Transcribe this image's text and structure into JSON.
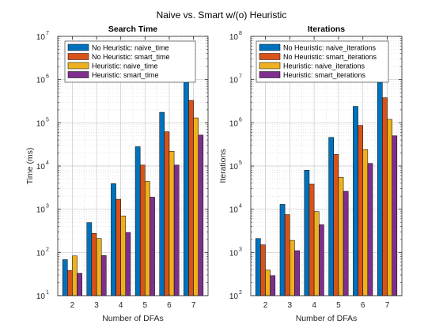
{
  "figure": {
    "title": "Naive vs. Smart w/(o) Heuristic"
  },
  "colors": {
    "no_heuristic_naive": "#0072BD",
    "no_heuristic_smart": "#D95319",
    "heuristic_naive": "#EDB120",
    "heuristic_smart": "#7E2F8E"
  },
  "chart_data": [
    {
      "type": "bar",
      "title": "Search Time",
      "xlabel": "Number of DFAs",
      "ylabel": "Time (ms)",
      "yscale": "log",
      "ylim": [
        10,
        10000000
      ],
      "categories": [
        "2",
        "3",
        "4",
        "5",
        "6",
        "7"
      ],
      "grid": true,
      "minor_grid": true,
      "legend_position": "top-left",
      "series": [
        {
          "name": "No Heuristic: naive_time",
          "color": "#0072BD",
          "values": [
            68,
            490,
            3900,
            28000,
            175000,
            1050000
          ]
        },
        {
          "name": "No Heuristic: smart_time",
          "color": "#D95319",
          "values": [
            38,
            275,
            1700,
            10500,
            62000,
            330000
          ]
        },
        {
          "name": "Heuristic: naive_time",
          "color": "#EDB120",
          "values": [
            83,
            210,
            700,
            4400,
            22000,
            130000
          ]
        },
        {
          "name": "Heuristic: smart_time",
          "color": "#7E2F8E",
          "values": [
            33,
            85,
            290,
            1900,
            10500,
            52000
          ]
        }
      ]
    },
    {
      "type": "bar",
      "title": "Iterations",
      "xlabel": "Number of DFAs",
      "ylabel": "Iterations",
      "yscale": "log",
      "ylim": [
        100,
        100000000
      ],
      "categories": [
        "2",
        "3",
        "4",
        "5",
        "6",
        "7"
      ],
      "grid": true,
      "minor_grid": true,
      "legend_position": "top-left",
      "series": [
        {
          "name": "No Heuristic: naive_iterations",
          "color": "#0072BD",
          "values": [
            2100,
            13000,
            80000,
            460000,
            2400000,
            11500000
          ]
        },
        {
          "name": "No Heuristic: smart_iterations",
          "color": "#D95319",
          "values": [
            1500,
            7500,
            38000,
            185000,
            870000,
            3800000
          ]
        },
        {
          "name": "Heuristic: naive_iterations",
          "color": "#EDB120",
          "values": [
            390,
            1900,
            8800,
            55000,
            240000,
            1200000
          ]
        },
        {
          "name": "Heuristic: smart_iterations",
          "color": "#7E2F8E",
          "values": [
            290,
            1100,
            4400,
            26000,
            115000,
            500000
          ]
        }
      ]
    }
  ]
}
